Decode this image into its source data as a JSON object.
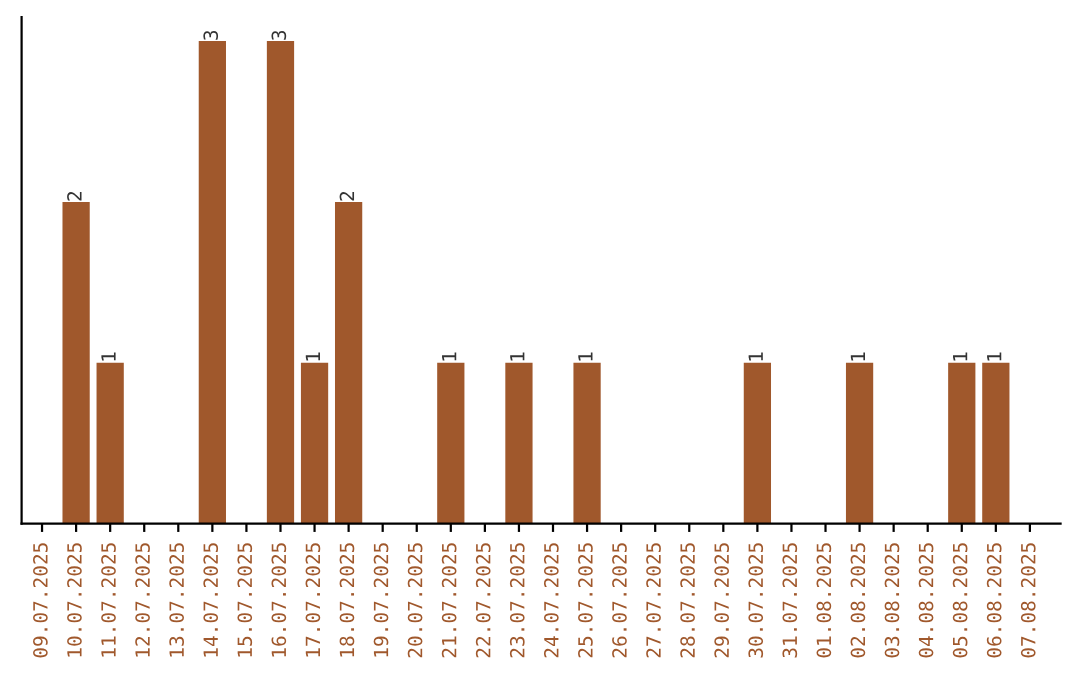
{
  "chart_data": {
    "type": "bar",
    "categories": [
      "09.07.2025",
      "10.07.2025",
      "11.07.2025",
      "12.07.2025",
      "13.07.2025",
      "14.07.2025",
      "15.07.2025",
      "16.07.2025",
      "17.07.2025",
      "18.07.2025",
      "19.07.2025",
      "20.07.2025",
      "21.07.2025",
      "22.07.2025",
      "23.07.2025",
      "24.07.2025",
      "25.07.2025",
      "26.07.2025",
      "27.07.2025",
      "28.07.2025",
      "29.07.2025",
      "30.07.2025",
      "31.07.2025",
      "01.08.2025",
      "02.08.2025",
      "03.08.2025",
      "04.08.2025",
      "05.08.2025",
      "06.08.2025",
      "07.08.2025"
    ],
    "values": [
      0,
      2,
      1,
      0,
      0,
      3,
      0,
      3,
      1,
      2,
      0,
      0,
      1,
      0,
      1,
      0,
      1,
      0,
      0,
      0,
      0,
      1,
      0,
      0,
      1,
      0,
      0,
      1,
      1,
      0
    ],
    "value_labels": [
      null,
      "2",
      "1",
      null,
      null,
      "3",
      null,
      "3",
      "1",
      "2",
      null,
      null,
      "1",
      null,
      "1",
      null,
      "1",
      null,
      null,
      null,
      null,
      "1",
      null,
      null,
      "1",
      null,
      null,
      "1",
      "1",
      null
    ],
    "color": "#a0582c",
    "tick_labels": "x",
    "grid": false,
    "legend": false
  }
}
